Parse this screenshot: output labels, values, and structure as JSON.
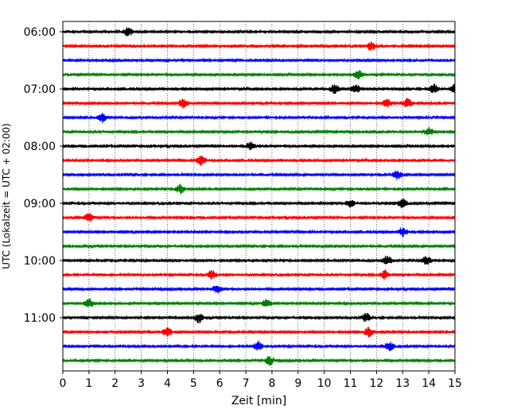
{
  "chart_data": {
    "type": "line",
    "title": "",
    "xlabel": "Zeit  [min]",
    "ylabel": "UTC (Lokalzeit = UTC + 02:00)",
    "xlim": [
      0,
      15
    ],
    "x_ticks": [
      0,
      1,
      2,
      3,
      4,
      5,
      6,
      7,
      8,
      9,
      10,
      11,
      12,
      13,
      14,
      15
    ],
    "y_ticks": [
      "06:00",
      "07:00",
      "08:00",
      "09:00",
      "10:00",
      "11:00"
    ],
    "grid": "vertical dotted at each minute",
    "legend": "none",
    "color_cycle": [
      "#000000",
      "#ff0000",
      "#0000ff",
      "#008000"
    ],
    "series": [
      {
        "start": "06:00",
        "events": [
          2.5
        ]
      },
      {
        "start": "06:15",
        "events": [
          11.8
        ]
      },
      {
        "start": "06:30",
        "events": []
      },
      {
        "start": "06:45",
        "events": [
          11.3
        ]
      },
      {
        "start": "07:00",
        "events": [
          10.4,
          11.2,
          14.2,
          15.0
        ]
      },
      {
        "start": "07:15",
        "events": [
          4.6,
          12.4,
          13.2
        ]
      },
      {
        "start": "07:30",
        "events": [
          1.5
        ]
      },
      {
        "start": "07:45",
        "events": [
          14.0
        ]
      },
      {
        "start": "08:00",
        "events": [
          7.2
        ]
      },
      {
        "start": "08:15",
        "events": [
          5.3
        ]
      },
      {
        "start": "08:30",
        "events": [
          12.8
        ]
      },
      {
        "start": "08:45",
        "events": [
          4.5
        ]
      },
      {
        "start": "09:00",
        "events": [
          11.0,
          13.0
        ]
      },
      {
        "start": "09:15",
        "events": [
          1.0
        ]
      },
      {
        "start": "09:30",
        "events": [
          13.0
        ]
      },
      {
        "start": "09:45",
        "events": []
      },
      {
        "start": "10:00",
        "events": [
          12.4,
          13.9
        ]
      },
      {
        "start": "10:15",
        "events": [
          5.7,
          12.3
        ]
      },
      {
        "start": "10:30",
        "events": [
          5.9
        ]
      },
      {
        "start": "10:45",
        "events": [
          1.0,
          7.8
        ]
      },
      {
        "start": "11:00",
        "events": [
          5.2,
          11.6
        ]
      },
      {
        "start": "11:15",
        "events": [
          4.0,
          11.7
        ]
      },
      {
        "start": "11:30",
        "events": [
          7.5,
          12.5
        ]
      },
      {
        "start": "11:45",
        "events": [
          7.9
        ]
      }
    ]
  }
}
